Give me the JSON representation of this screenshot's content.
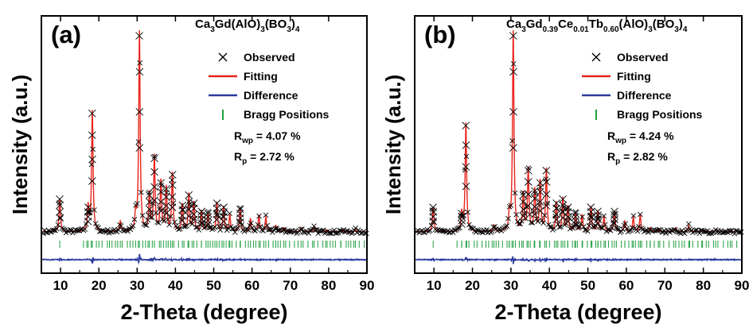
{
  "colors": {
    "observed": "#000000",
    "fitting": "#e8231c",
    "difference": "#2b3a9e",
    "bragg": "#1e9e3c",
    "axes": "#000000"
  },
  "chart_data": [
    {
      "type": "line",
      "panel_label": "(a)",
      "formula": {
        "parts": [
          {
            "t": "Ca",
            "s": "n"
          },
          {
            "t": "3",
            "s": "b"
          },
          {
            "t": "Gd(AlO)",
            "s": "n"
          },
          {
            "t": "3",
            "s": "b"
          },
          {
            "t": "(BO",
            "s": "n"
          },
          {
            "t": "3",
            "s": "b"
          },
          {
            "t": ")",
            "s": "n"
          },
          {
            "t": "4",
            "s": "b"
          }
        ]
      },
      "xlabel": "2-Theta (degree)",
      "ylabel": "Intensity (a.u.)",
      "xlim": [
        5,
        90
      ],
      "xticks": [
        10,
        20,
        30,
        40,
        50,
        60,
        70,
        80,
        90
      ],
      "legend": {
        "placement": "top-right",
        "observed": "Observed",
        "fitting": "Fitting",
        "difference": "Difference",
        "bragg": "Bragg Positions"
      },
      "stats": [
        {
          "main": "R",
          "sub": "wp",
          "value": " = 4.07 %"
        },
        {
          "main": "R",
          "sub": "p",
          "value": " = 2.72 %"
        }
      ],
      "series": [
        {
          "name": "Observed",
          "style": "x-markers"
        },
        {
          "name": "Fitting",
          "style": "line"
        },
        {
          "name": "Difference",
          "style": "line"
        },
        {
          "name": "Bragg Positions",
          "style": "ticks"
        }
      ],
      "baseline": 0.04,
      "peaks": [
        {
          "x": 9.8,
          "y": 0.2
        },
        {
          "x": 17.2,
          "y": 0.16
        },
        {
          "x": 18.3,
          "y": 0.62
        },
        {
          "x": 25.6,
          "y": 0.09
        },
        {
          "x": 29.6,
          "y": 0.12
        },
        {
          "x": 30.6,
          "y": 1.0
        },
        {
          "x": 33.2,
          "y": 0.22
        },
        {
          "x": 34.5,
          "y": 0.4
        },
        {
          "x": 36.2,
          "y": 0.28
        },
        {
          "x": 37.6,
          "y": 0.25
        },
        {
          "x": 39.2,
          "y": 0.32
        },
        {
          "x": 41.8,
          "y": 0.17
        },
        {
          "x": 43.5,
          "y": 0.22
        },
        {
          "x": 44.8,
          "y": 0.18
        },
        {
          "x": 46.8,
          "y": 0.14
        },
        {
          "x": 48.5,
          "y": 0.13
        },
        {
          "x": 50.8,
          "y": 0.18
        },
        {
          "x": 52.6,
          "y": 0.16
        },
        {
          "x": 54.2,
          "y": 0.12
        },
        {
          "x": 56.9,
          "y": 0.15
        },
        {
          "x": 59.6,
          "y": 0.1
        },
        {
          "x": 61.8,
          "y": 0.12
        },
        {
          "x": 63.6,
          "y": 0.11
        },
        {
          "x": 66.2,
          "y": 0.07
        },
        {
          "x": 68.3,
          "y": 0.06
        },
        {
          "x": 72.8,
          "y": 0.06
        },
        {
          "x": 76.2,
          "y": 0.06
        },
        {
          "x": 79.6,
          "y": 0.05
        },
        {
          "x": 83.2,
          "y": 0.05
        },
        {
          "x": 87.0,
          "y": 0.05
        }
      ]
    },
    {
      "type": "line",
      "panel_label": "(b)",
      "formula": {
        "parts": [
          {
            "t": "Ca",
            "s": "n"
          },
          {
            "t": "3",
            "s": "b"
          },
          {
            "t": "Gd",
            "s": "n"
          },
          {
            "t": "0.39",
            "s": "b"
          },
          {
            "t": "Ce",
            "s": "n"
          },
          {
            "t": "0.01",
            "s": "b"
          },
          {
            "t": "Tb",
            "s": "n"
          },
          {
            "t": "0.60",
            "s": "b"
          },
          {
            "t": "(AlO)",
            "s": "n"
          },
          {
            "t": "3",
            "s": "b"
          },
          {
            "t": "(BO",
            "s": "n"
          },
          {
            "t": "3",
            "s": "b"
          },
          {
            "t": ")",
            "s": "n"
          },
          {
            "t": "4",
            "s": "b"
          }
        ]
      },
      "xlabel": "2-Theta (degree)",
      "ylabel": "Intensity (a.u.)",
      "xlim": [
        5,
        90
      ],
      "xticks": [
        10,
        20,
        30,
        40,
        50,
        60,
        70,
        80,
        90
      ],
      "legend": {
        "placement": "top-right",
        "observed": "Observed",
        "fitting": "Fitting",
        "difference": "Difference",
        "bragg": "Bragg Positions"
      },
      "stats": [
        {
          "main": "R",
          "sub": "wp",
          "value": " = 4.24 %"
        },
        {
          "main": "R",
          "sub": "p",
          "value": " = 2.82 %"
        }
      ],
      "series": [
        {
          "name": "Observed",
          "style": "x-markers"
        },
        {
          "name": "Fitting",
          "style": "line"
        },
        {
          "name": "Difference",
          "style": "line"
        },
        {
          "name": "Bragg Positions",
          "style": "ticks"
        }
      ],
      "baseline": 0.04,
      "peaks": [
        {
          "x": 9.8,
          "y": 0.16
        },
        {
          "x": 17.2,
          "y": 0.13
        },
        {
          "x": 18.3,
          "y": 0.56
        },
        {
          "x": 25.6,
          "y": 0.07
        },
        {
          "x": 29.6,
          "y": 0.12
        },
        {
          "x": 30.6,
          "y": 1.0
        },
        {
          "x": 33.2,
          "y": 0.22
        },
        {
          "x": 34.5,
          "y": 0.34
        },
        {
          "x": 36.2,
          "y": 0.24
        },
        {
          "x": 37.6,
          "y": 0.28
        },
        {
          "x": 39.2,
          "y": 0.34
        },
        {
          "x": 41.8,
          "y": 0.18
        },
        {
          "x": 43.5,
          "y": 0.2
        },
        {
          "x": 44.8,
          "y": 0.16
        },
        {
          "x": 46.8,
          "y": 0.13
        },
        {
          "x": 48.5,
          "y": 0.12
        },
        {
          "x": 50.8,
          "y": 0.16
        },
        {
          "x": 52.6,
          "y": 0.14
        },
        {
          "x": 54.2,
          "y": 0.11
        },
        {
          "x": 56.9,
          "y": 0.14
        },
        {
          "x": 59.6,
          "y": 0.09
        },
        {
          "x": 61.8,
          "y": 0.11
        },
        {
          "x": 63.6,
          "y": 0.12
        },
        {
          "x": 66.2,
          "y": 0.06
        },
        {
          "x": 68.3,
          "y": 0.05
        },
        {
          "x": 72.8,
          "y": 0.06
        },
        {
          "x": 76.2,
          "y": 0.07
        },
        {
          "x": 79.6,
          "y": 0.05
        },
        {
          "x": 83.2,
          "y": 0.05
        },
        {
          "x": 87.0,
          "y": 0.04
        }
      ]
    }
  ]
}
